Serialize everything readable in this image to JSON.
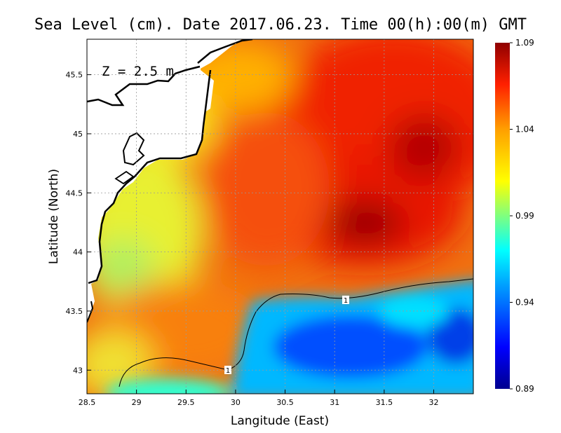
{
  "chart_data": {
    "type": "heatmap",
    "title": "Sea Level (cm). Date 2017.06.23. Time 00(h):00(m) GMT",
    "xlabel": "Langitude (East)",
    "ylabel": "Latitude (North)",
    "annotation": "Z = 2.5 m",
    "xlim": [
      28.5,
      32.4
    ],
    "ylim": [
      42.8,
      45.8
    ],
    "x_ticks": [
      "28.5",
      "29",
      "29.5",
      "30",
      "30.5",
      "31",
      "31.5",
      "32"
    ],
    "y_ticks": [
      "43",
      "43.5",
      "44",
      "44.5",
      "45",
      "45.5"
    ],
    "grid": true,
    "colorbar": {
      "range": [
        0.89,
        1.09
      ],
      "ticks": [
        "1.09",
        "1.04",
        "0.99",
        "0.94",
        "0.89"
      ],
      "colors": [
        "#00008f",
        "#0000ff",
        "#00a0ff",
        "#00ffff",
        "#7fff7f",
        "#ffff00",
        "#ff9f00",
        "#ff2000",
        "#8f0000"
      ]
    },
    "contour_label": "1",
    "regions": [
      {
        "region": "north-east open sea",
        "lon": 32.0,
        "lat": 44.8,
        "value": 1.07
      },
      {
        "region": "east-central maximum",
        "lon": 31.3,
        "lat": 44.2,
        "value": 1.08
      },
      {
        "region": "central sea",
        "lon": 30.5,
        "lat": 44.6,
        "value": 1.05
      },
      {
        "region": "near-coast shelf",
        "lon": 29.2,
        "lat": 44.2,
        "value": 1.01
      },
      {
        "region": "south-east",
        "lon": 31.7,
        "lat": 43.2,
        "value": 0.93
      },
      {
        "region": "south-central",
        "lon": 30.5,
        "lat": 43.1,
        "value": 0.94
      }
    ]
  }
}
